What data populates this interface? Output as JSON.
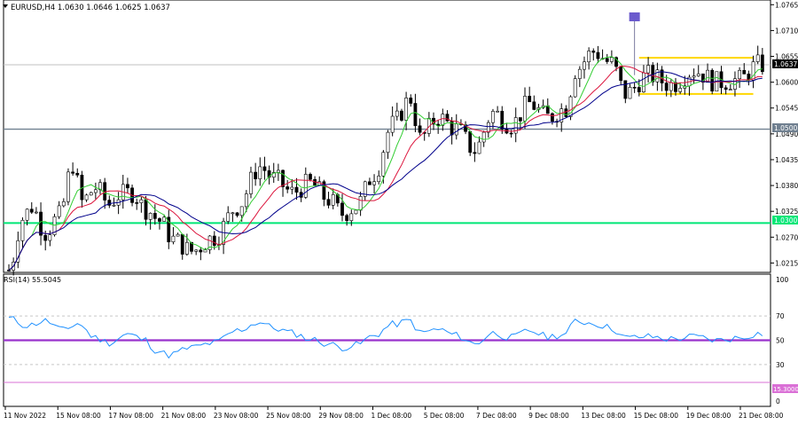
{
  "symbol_header": "EURUSD,H4  1.0630 1.0646 1.0625 1.0637",
  "rsi_header": "RSI(14) 55.5045",
  "price_labels": {
    "current": "1.0637",
    "resistance": "1.0500",
    "support": "1.0300",
    "rsi_low": "15.3000"
  },
  "colors": {
    "bull_candle": "#ffffff",
    "bear_candle": "#000000",
    "ma_fast": "#32cd32",
    "ma_mid": "#dc143c",
    "ma_slow": "#00008b",
    "support_line": "#00e676",
    "resistance_line": "#708090",
    "range_box": "#ffd700",
    "rsi_line": "#1e90ff",
    "rsi_mid": "#9932cc",
    "rsi_low_line": "#da70d6",
    "event_marker": "#6a5acd"
  },
  "icons": [
    "dropdown-arrow-icon",
    "event-marker-icon"
  ],
  "chart_data": [
    {
      "type": "candlestick",
      "title": "EURUSD,H4  1.0630 1.0646 1.0625 1.0637",
      "ylim": [
        1.0195,
        1.0775
      ],
      "y_ticks": [
        "1.0765",
        "1.0710",
        "1.0655",
        "1.0600",
        "1.0545",
        "1.0490",
        "1.0435",
        "1.0380",
        "1.0325",
        "1.0270",
        "1.0215"
      ],
      "x_ticks": [
        "11 Nov 2022",
        "15 Nov 08:00",
        "17 Nov 08:00",
        "21 Nov 08:00",
        "23 Nov 08:00",
        "25 Nov 08:00",
        "29 Nov 08:00",
        "1 Dec 08:00",
        "5 Dec 08:00",
        "7 Dec 08:00",
        "9 Dec 08:00",
        "13 Dec 08:00",
        "15 Dec 08:00",
        "19 Dec 08:00",
        "21 Dec 08:00"
      ],
      "horizontal_levels": [
        1.0637,
        1.05,
        1.03
      ],
      "range_box": {
        "top": 1.0652,
        "bottom": 1.0575,
        "start_bar": 138,
        "end_bar": 163
      },
      "moving_averages": [
        "ma_fast",
        "ma_mid",
        "ma_slow"
      ],
      "ohlc_anchors": [
        [
          0,
          1.02
        ],
        [
          3,
          1.031
        ],
        [
          5,
          1.0335
        ],
        [
          8,
          1.028
        ],
        [
          11,
          1.0315
        ],
        [
          14,
          1.0425
        ],
        [
          16,
          1.0345
        ],
        [
          19,
          1.0375
        ],
        [
          22,
          1.034
        ],
        [
          24,
          1.036
        ],
        [
          27,
          1.0365
        ],
        [
          30,
          1.033
        ],
        [
          33,
          1.0305
        ],
        [
          36,
          1.0265
        ],
        [
          40,
          1.024
        ],
        [
          45,
          1.027
        ],
        [
          50,
          1.0335
        ],
        [
          55,
          1.042
        ],
        [
          58,
          1.0395
        ],
        [
          62,
          1.0365
        ],
        [
          66,
          1.0385
        ],
        [
          70,
          1.035
        ],
        [
          73,
          1.032
        ],
        [
          76,
          1.0335
        ],
        [
          80,
          1.0405
        ],
        [
          84,
          1.051
        ],
        [
          88,
          1.0565
        ],
        [
          90,
          1.048
        ],
        [
          94,
          1.0525
        ],
        [
          98,
          1.05
        ],
        [
          102,
          1.0455
        ],
        [
          106,
          1.0535
        ],
        [
          110,
          1.051
        ],
        [
          114,
          1.0555
        ],
        [
          118,
          1.0525
        ],
        [
          122,
          1.0545
        ],
        [
          124,
          1.0625
        ],
        [
          128,
          1.0665
        ],
        [
          132,
          1.064
        ],
        [
          135,
          1.0575
        ],
        [
          140,
          1.0615
        ],
        [
          145,
          1.0595
        ],
        [
          150,
          1.0625
        ],
        [
          155,
          1.06
        ],
        [
          160,
          1.0605
        ],
        [
          164,
          1.0637
        ]
      ]
    },
    {
      "type": "line",
      "title": "RSI(14) 55.5045",
      "ylim": [
        0,
        100
      ],
      "y_ticks": [
        "100",
        "70",
        "50",
        "30",
        "0"
      ],
      "levels": [
        70,
        50,
        30,
        15.3
      ],
      "values": [
        [
          0,
          68
        ],
        [
          4,
          62
        ],
        [
          8,
          66
        ],
        [
          12,
          58
        ],
        [
          15,
          64
        ],
        [
          19,
          52
        ],
        [
          22,
          48
        ],
        [
          26,
          55
        ],
        [
          30,
          50
        ],
        [
          32,
          42
        ],
        [
          35,
          38
        ],
        [
          40,
          44
        ],
        [
          45,
          48
        ],
        [
          50,
          58
        ],
        [
          55,
          65
        ],
        [
          58,
          60
        ],
        [
          62,
          56
        ],
        [
          66,
          51
        ],
        [
          70,
          47
        ],
        [
          73,
          44
        ],
        [
          76,
          46
        ],
        [
          80,
          54
        ],
        [
          84,
          63
        ],
        [
          88,
          66
        ],
        [
          90,
          56
        ],
        [
          94,
          59
        ],
        [
          98,
          54
        ],
        [
          102,
          47
        ],
        [
          106,
          56
        ],
        [
          110,
          52
        ],
        [
          114,
          58
        ],
        [
          118,
          53
        ],
        [
          122,
          55
        ],
        [
          124,
          66
        ],
        [
          128,
          64
        ],
        [
          132,
          60
        ],
        [
          135,
          52
        ],
        [
          140,
          53
        ],
        [
          145,
          51
        ],
        [
          150,
          53
        ],
        [
          155,
          50
        ],
        [
          160,
          52
        ],
        [
          164,
          55.5
        ]
      ]
    }
  ]
}
